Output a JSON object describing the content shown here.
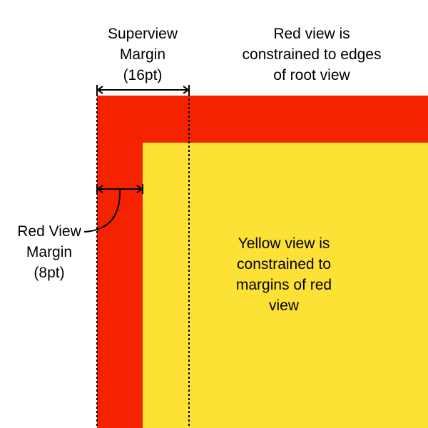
{
  "colors": {
    "red_view": "#f52200",
    "yellow_view": "#fde135",
    "background": "#ffffff",
    "lines": "#000000"
  },
  "labels": {
    "superview_margin": [
      "Superview",
      "Margin",
      "(16pt)"
    ],
    "red_view_caption": [
      "Red view is",
      "constrained to edges",
      "of root view"
    ],
    "yellow_view_caption": [
      "Yellow view is",
      "constrained to",
      "margins of red",
      "view"
    ],
    "red_view_margin": [
      "Red View",
      "Margin",
      "(8pt)"
    ]
  }
}
